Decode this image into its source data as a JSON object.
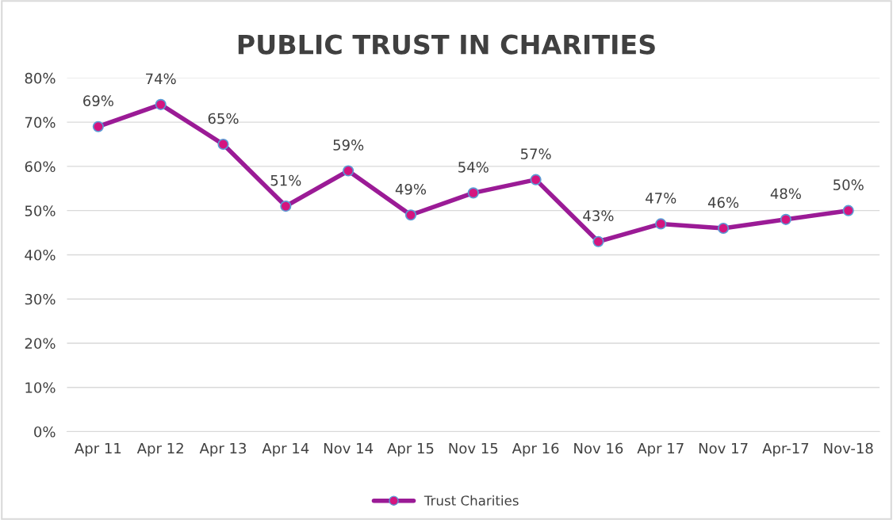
{
  "chart_data": {
    "type": "line",
    "title": "PUBLIC TRUST IN CHARITIES",
    "categories": [
      "Apr 11",
      "Apr 12",
      "Apr 13",
      "Apr 14",
      "Nov 14",
      "Apr 15",
      "Nov 15",
      "Apr 16",
      "Nov 16",
      "Apr 17",
      "Nov 17",
      "Apr-17",
      "Nov-18"
    ],
    "series": [
      {
        "name": "Trust Charities",
        "color": "#9b1b96",
        "values": [
          69,
          74,
          65,
          51,
          59,
          49,
          54,
          57,
          43,
          47,
          46,
          48,
          50
        ],
        "value_labels": [
          "69%",
          "74%",
          "65%",
          "51%",
          "59%",
          "49%",
          "54%",
          "57%",
          "43%",
          "47%",
          "46%",
          "48%",
          "50%"
        ]
      }
    ],
    "ylim": [
      0,
      80
    ],
    "yticks": [
      {
        "value": 0,
        "label": "0%"
      },
      {
        "value": 10,
        "label": "10%"
      },
      {
        "value": 20,
        "label": "20%"
      },
      {
        "value": 30,
        "label": "30%"
      },
      {
        "value": 40,
        "label": "40%"
      },
      {
        "value": 50,
        "label": "50%"
      },
      {
        "value": 60,
        "label": "60%"
      },
      {
        "value": 70,
        "label": "70%"
      },
      {
        "value": 80,
        "label": "80%"
      }
    ],
    "grid": "y",
    "legend": "bottom",
    "marker": "circle",
    "line_style": "solid"
  }
}
